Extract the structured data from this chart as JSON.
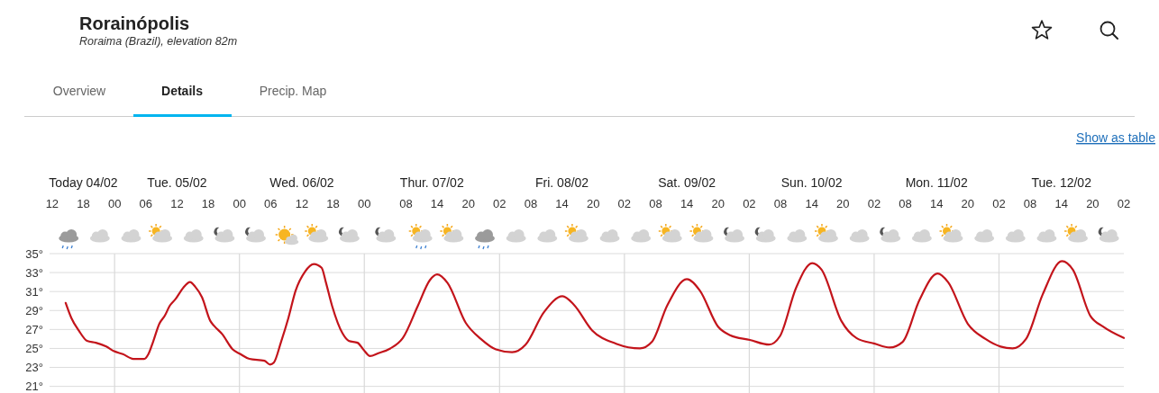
{
  "chart_data": {
    "type": "line",
    "title": "Rorainópolis",
    "subtitle": "Roraima (Brazil), elevation 82m",
    "annotations": [
      "Overview",
      "Details",
      "Precip. Map",
      "Show as table",
      "Today 04/02",
      "Tue. 05/02",
      "Wed. 06/02",
      "Thur. 07/02",
      "Fri. 08/02",
      "Sat. 09/02",
      "Sun. 10/02",
      "Mon. 11/02",
      "Tue. 12/02"
    ],
    "x": [
      14.6,
      15.7,
      17.1,
      18.7,
      20.4,
      22.4,
      23.9,
      25.6,
      27.6,
      29.7,
      30.5,
      31.4,
      32.6,
      33.7,
      34.6,
      35.7,
      37.2,
      38.5,
      39.5,
      40.8,
      42.4,
      43.1,
      44.7,
      46.7,
      48.2,
      49.9,
      52.8,
      53.9,
      54.6,
      56.0,
      57.4,
      58.8,
      60.6,
      62.3,
      63.8,
      64.6,
      65.8,
      67.8,
      69.0,
      70.7,
      71.8,
      73.1,
      74.7,
      77.0,
      79.4,
      82.3,
      84.6,
      86.0,
      88.0,
      91.5,
      94.4,
      97.3,
      100.4,
      103.0,
      106.5,
      110.1,
      112.3,
      115.8,
      120.4,
      125.0,
      127.3,
      130.2,
      134.0,
      136.5,
      140.0,
      142.3,
      146.1,
      149.8,
      151.9,
      155.0,
      158.1,
      159.9,
      163.7,
      166.6,
      170.1,
      173.0,
      175.5,
      178.7,
      182.2,
      184.2,
      188.0,
      191.4,
      194.3,
      196.6,
      199.2,
      202.4,
      206.1,
      208.2,
      211.6,
      214.0,
      218.0
    ],
    "series": [
      {
        "color": "#c3141b",
        "values": [
          29.8,
          28.2,
          26.9,
          25.8,
          25.6,
          25.2,
          24.7,
          24.4,
          23.9,
          23.9,
          24.4,
          25.7,
          27.6,
          28.5,
          29.5,
          30.2,
          31.4,
          32.0,
          31.5,
          30.4,
          27.9,
          27.4,
          26.5,
          24.9,
          24.4,
          23.9,
          23.7,
          23.3,
          23.5,
          25.7,
          28.2,
          31.1,
          33.1,
          33.9,
          33.5,
          32.0,
          29.5,
          26.6,
          25.8,
          25.6,
          24.9,
          24.2,
          24.5,
          25.0,
          26.1,
          29.5,
          32.2,
          32.8,
          31.9,
          27.7,
          26.0,
          24.9,
          24.6,
          25.4,
          28.8,
          30.5,
          29.6,
          26.9,
          25.5,
          25.0,
          25.7,
          29.5,
          32.3,
          31.1,
          27.3,
          26.4,
          25.9,
          25.4,
          26.3,
          31.4,
          34.0,
          33.3,
          27.9,
          26.1,
          25.5,
          25.1,
          25.7,
          30.1,
          32.9,
          32.0,
          27.6,
          26.0,
          25.2,
          25.0,
          26.0,
          30.7,
          34.2,
          33.3,
          28.4,
          27.3,
          26.1
        ]
      }
    ],
    "xlim": [
      11.5,
      218
    ],
    "xticks": [
      {
        "value": 12,
        "label": "12"
      },
      {
        "value": 18,
        "label": "18"
      },
      {
        "value": 24,
        "label": "00"
      },
      {
        "value": 30,
        "label": "06"
      },
      {
        "value": 36,
        "label": "12"
      },
      {
        "value": 42,
        "label": "18"
      },
      {
        "value": 48,
        "label": "00"
      },
      {
        "value": 54,
        "label": "06"
      },
      {
        "value": 60,
        "label": "12"
      },
      {
        "value": 66,
        "label": "18"
      },
      {
        "value": 72,
        "label": "00"
      },
      {
        "value": 80,
        "label": "08"
      },
      {
        "value": 86,
        "label": "14"
      },
      {
        "value": 92,
        "label": "20"
      },
      {
        "value": 98,
        "label": "02"
      },
      {
        "value": 104,
        "label": "08"
      },
      {
        "value": 110,
        "label": "14"
      },
      {
        "value": 116,
        "label": "20"
      },
      {
        "value": 122,
        "label": "02"
      },
      {
        "value": 128,
        "label": "08"
      },
      {
        "value": 134,
        "label": "14"
      },
      {
        "value": 140,
        "label": "20"
      },
      {
        "value": 146,
        "label": "02"
      },
      {
        "value": 152,
        "label": "08"
      },
      {
        "value": 158,
        "label": "14"
      },
      {
        "value": 164,
        "label": "20"
      },
      {
        "value": 170,
        "label": "02"
      },
      {
        "value": 176,
        "label": "08"
      },
      {
        "value": 182,
        "label": "14"
      },
      {
        "value": 188,
        "label": "20"
      },
      {
        "value": 194,
        "label": "02"
      },
      {
        "value": 200,
        "label": "08"
      },
      {
        "value": 206,
        "label": "14"
      },
      {
        "value": 212,
        "label": "20"
      },
      {
        "value": 218,
        "label": "02"
      }
    ],
    "ylim": [
      20.3,
      35
    ],
    "yticks": [
      {
        "value": 21,
        "label": "21°"
      },
      {
        "value": 23,
        "label": "23°"
      },
      {
        "value": 25,
        "label": "25°"
      },
      {
        "value": 27,
        "label": "27°"
      },
      {
        "value": 29,
        "label": "29°"
      },
      {
        "value": 31,
        "label": "31°"
      },
      {
        "value": 33,
        "label": "33°"
      },
      {
        "value": 35,
        "label": "35°"
      }
    ],
    "grid": "y",
    "ref_lines": [
      {
        "axis": "x",
        "value": 24,
        "color": "#d9d9d9"
      },
      {
        "axis": "x",
        "value": 48,
        "color": "#d9d9d9"
      },
      {
        "axis": "x",
        "value": 72,
        "color": "#d9d9d9"
      },
      {
        "axis": "x",
        "value": 98,
        "color": "#d9d9d9"
      },
      {
        "axis": "x",
        "value": 122,
        "color": "#d9d9d9"
      },
      {
        "axis": "x",
        "value": 146,
        "color": "#d9d9d9"
      },
      {
        "axis": "x",
        "value": 170,
        "color": "#d9d9d9"
      },
      {
        "axis": "x",
        "value": 194,
        "color": "#d9d9d9"
      }
    ]
  }
}
